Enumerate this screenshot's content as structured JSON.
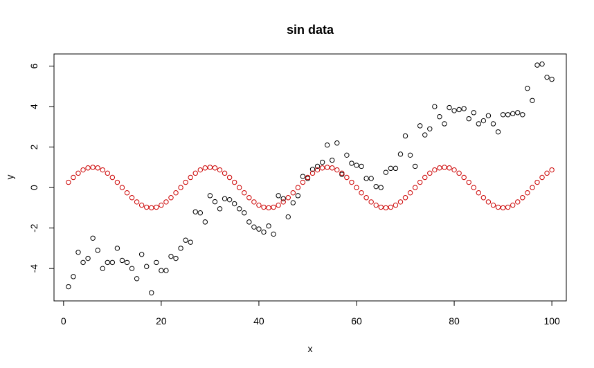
{
  "chart_data": {
    "type": "scatter",
    "title": "sin data",
    "xlabel": "x",
    "ylabel": "y",
    "xlim": [
      -1.96,
      102.96
    ],
    "ylim": [
      -5.6,
      6.6
    ],
    "xticks": [
      0,
      20,
      40,
      60,
      80,
      100
    ],
    "yticks": [
      -4,
      -2,
      0,
      2,
      4,
      6
    ],
    "grid": false,
    "series": [
      {
        "color": "#000000",
        "marker": "open-circle",
        "x": [
          1,
          2,
          3,
          4,
          5,
          6,
          7,
          8,
          9,
          10,
          11,
          12,
          13,
          14,
          15,
          16,
          17,
          18,
          19,
          20,
          21,
          22,
          23,
          24,
          25,
          26,
          27,
          28,
          29,
          30,
          31,
          32,
          33,
          34,
          35,
          36,
          37,
          38,
          39,
          40,
          41,
          42,
          43,
          44,
          45,
          46,
          47,
          48,
          49,
          50,
          51,
          52,
          53,
          54,
          55,
          56,
          57,
          58,
          59,
          60,
          61,
          62,
          63,
          64,
          65,
          66,
          67,
          68,
          69,
          70,
          71,
          72,
          73,
          74,
          75,
          76,
          77,
          78,
          79,
          80,
          81,
          82,
          83,
          84,
          85,
          86,
          87,
          88,
          89,
          90,
          91,
          92,
          93,
          94,
          95,
          96,
          97,
          98,
          99,
          100
        ],
        "y": [
          -4.9,
          -4.4,
          -3.2,
          -3.7,
          -3.5,
          -2.5,
          -3.1,
          -4.0,
          -3.7,
          -3.7,
          -3.0,
          -3.6,
          -3.7,
          -4.0,
          -4.5,
          -3.3,
          -3.9,
          -5.2,
          -3.7,
          -4.1,
          -4.1,
          -3.4,
          -3.5,
          -3.0,
          -2.6,
          -2.7,
          -1.2,
          -1.25,
          -1.7,
          -0.4,
          -0.7,
          -1.05,
          -0.55,
          -0.6,
          -0.8,
          -1.05,
          -1.25,
          -1.7,
          -1.95,
          -2.05,
          -2.2,
          -1.9,
          -2.3,
          -0.4,
          -0.55,
          -1.45,
          -0.75,
          -0.4,
          0.55,
          0.45,
          0.9,
          1.05,
          1.25,
          2.1,
          1.35,
          2.2,
          0.65,
          1.6,
          1.2,
          1.1,
          1.05,
          0.45,
          0.45,
          0.05,
          0.0,
          0.75,
          0.95,
          0.95,
          1.65,
          2.55,
          1.6,
          1.05,
          3.05,
          2.6,
          2.9,
          4.0,
          3.5,
          3.15,
          3.95,
          3.8,
          3.85,
          3.9,
          3.4,
          3.7,
          3.15,
          3.3,
          3.55,
          3.15,
          2.75,
          3.6,
          3.6,
          3.65,
          3.7,
          3.6,
          4.9,
          4.3,
          6.05,
          6.1,
          5.45,
          5.35
        ]
      },
      {
        "color": "#cc0000",
        "marker": "open-circle",
        "x": [
          1,
          2,
          3,
          4,
          5,
          6,
          7,
          8,
          9,
          10,
          11,
          12,
          13,
          14,
          15,
          16,
          17,
          18,
          19,
          20,
          21,
          22,
          23,
          24,
          25,
          26,
          27,
          28,
          29,
          30,
          31,
          32,
          33,
          34,
          35,
          36,
          37,
          38,
          39,
          40,
          41,
          42,
          43,
          44,
          45,
          46,
          47,
          48,
          49,
          50,
          51,
          52,
          53,
          54,
          55,
          56,
          57,
          58,
          59,
          60,
          61,
          62,
          63,
          64,
          65,
          66,
          67,
          68,
          69,
          70,
          71,
          72,
          73,
          74,
          75,
          76,
          77,
          78,
          79,
          80,
          81,
          82,
          83,
          84,
          85,
          86,
          87,
          88,
          89,
          90,
          91,
          92,
          93,
          94,
          95,
          96,
          97,
          98,
          99,
          100
        ],
        "y": [
          0.26,
          0.5,
          0.71,
          0.87,
          0.97,
          1.0,
          0.97,
          0.87,
          0.71,
          0.5,
          0.26,
          0.0,
          -0.26,
          -0.5,
          -0.71,
          -0.87,
          -0.97,
          -1.0,
          -0.97,
          -0.87,
          -0.71,
          -0.5,
          -0.26,
          0.0,
          0.26,
          0.5,
          0.71,
          0.87,
          0.97,
          1.0,
          0.97,
          0.87,
          0.71,
          0.5,
          0.26,
          0.0,
          -0.26,
          -0.5,
          -0.71,
          -0.87,
          -0.97,
          -1.0,
          -0.97,
          -0.87,
          -0.71,
          -0.5,
          -0.26,
          0.0,
          0.26,
          0.5,
          0.71,
          0.87,
          0.97,
          1.0,
          0.97,
          0.87,
          0.71,
          0.5,
          0.26,
          0.0,
          -0.26,
          -0.5,
          -0.71,
          -0.87,
          -0.97,
          -1.0,
          -0.97,
          -0.87,
          -0.71,
          -0.5,
          -0.26,
          0.0,
          0.26,
          0.5,
          0.71,
          0.87,
          0.97,
          1.0,
          0.97,
          0.87,
          0.71,
          0.5,
          0.26,
          0.0,
          -0.26,
          -0.5,
          -0.71,
          -0.87,
          -0.97,
          -1.0,
          -0.97,
          -0.87,
          -0.71,
          -0.5,
          -0.26,
          0.0,
          0.26,
          0.5,
          0.71,
          0.87
        ]
      }
    ]
  }
}
